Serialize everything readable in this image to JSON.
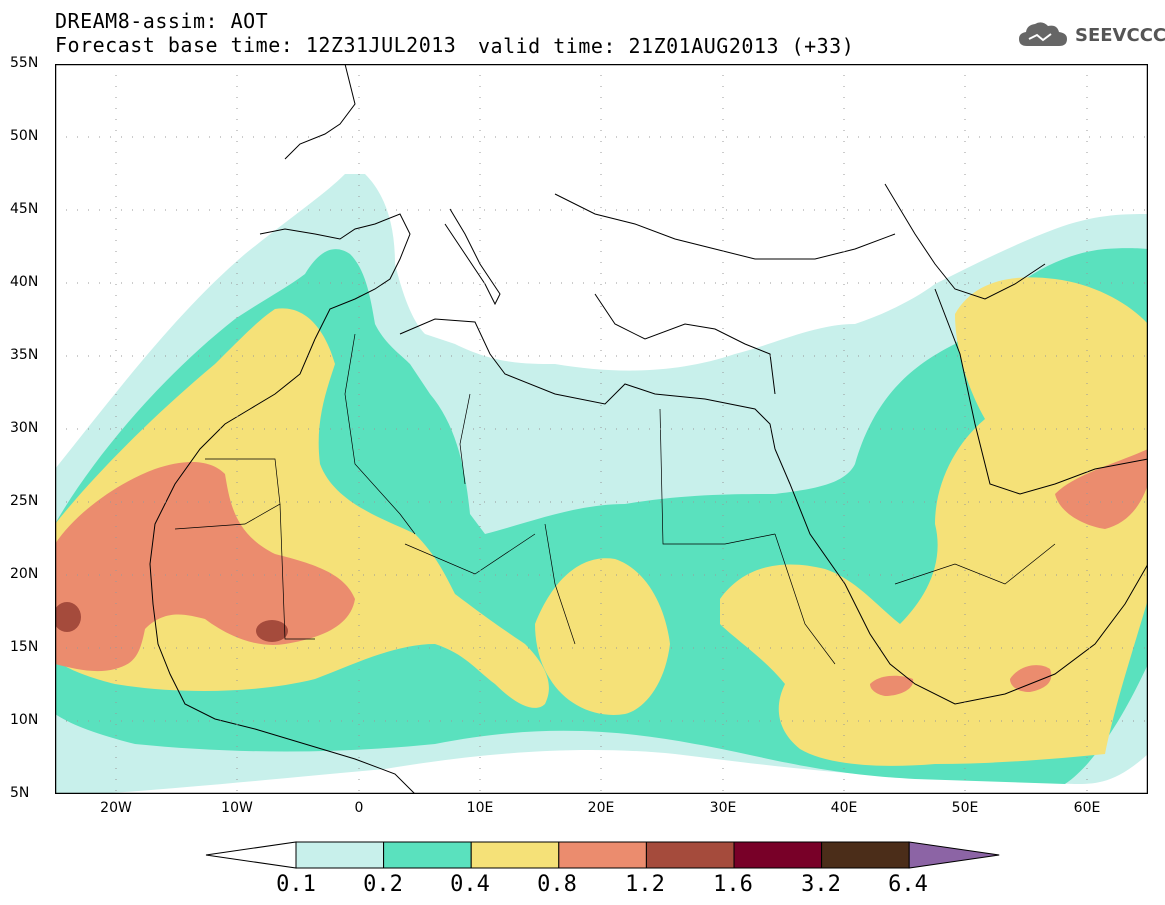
{
  "header": {
    "model_line": "DREAM8-assim: AOT",
    "base_time": "Forecast base time: 12Z31JUL2013",
    "valid_time": "valid time: 21Z01AUG2013 (+33)"
  },
  "logo": {
    "text": "SEEVCCC",
    "icon": "cloud-icon"
  },
  "map": {
    "projection": "lat-lon",
    "lon_range": [
      -25,
      65
    ],
    "lat_range": [
      5,
      55
    ],
    "lat_labels": [
      "55N",
      "50N",
      "45N",
      "40N",
      "35N",
      "30N",
      "25N",
      "20N",
      "15N",
      "10N",
      "5N"
    ],
    "lon_labels": [
      "20W",
      "10W",
      "0",
      "10E",
      "20E",
      "30E",
      "40E",
      "50E",
      "60E"
    ],
    "grid": "dotted",
    "field": "AOT (aerosol optical thickness)"
  },
  "colorbar": {
    "levels": [
      "0.1",
      "0.2",
      "0.4",
      "0.8",
      "1.2",
      "1.6",
      "3.2",
      "6.4"
    ],
    "colors": [
      "#ffffff",
      "#c8f0eb",
      "#5ae1be",
      "#f5e178",
      "#eb8c6e",
      "#a54b3c",
      "#780028",
      "#4b2d19",
      "#8c64a5"
    ]
  }
}
